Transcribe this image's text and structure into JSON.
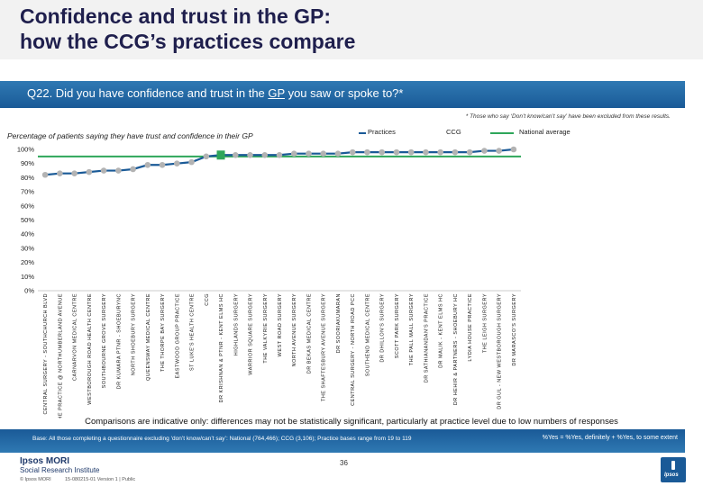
{
  "header": {
    "title": "Confidence and trust in the GP:\nhow the CCG’s practices compare"
  },
  "question": {
    "prefix": "Q22. Did you have confidence and trust in the ",
    "underlined": "GP",
    "suffix": " you saw or spoke to?*"
  },
  "footnote": "* Those who say ‘Don’t know/can’t say’ have been excluded from these results.",
  "legend": {
    "practices": "Practices",
    "ccg": "CCG",
    "national": "National average"
  },
  "colors": {
    "practice_line": "#1a5a97",
    "dot": "#b3b3b3",
    "ccg": "#2ea65a",
    "national": "#2ea65a"
  },
  "chart_data": {
    "type": "scatter",
    "subtitle": "Percentage of patients saying they have trust and confidence in their GP",
    "ylim": [
      0,
      100
    ],
    "yticks": [
      "0%",
      "10%",
      "20%",
      "30%",
      "40%",
      "50%",
      "60%",
      "70%",
      "80%",
      "90%",
      "100%"
    ],
    "national_average": 95,
    "ccg_value": 95,
    "ccg_index": 12,
    "categories": [
      "CENTRAL SURGERY - SOUTHCHURCH BLVD",
      "THE PRACTICE @ NORTHUMBERLAND AVENUE",
      "CARNARVON MEDICAL CENTRE",
      "WESTBOROUGH ROAD HEALTH CENTRE",
      "SOUTHBOURNE GROVE SURGERY",
      "DR KUMARA PTNR - SHOEBURYNC",
      "NORTH SHOEBURY SURGERY",
      "QUEENSWAY MEDICAL CENTRE",
      "THE THORPE BAY SURGERY",
      "EASTWOOD GROUP PRACTICE",
      "ST LUKE'S HEALTH CENTRE",
      "CCG",
      "DR KRISHNAN & PTNR - KENT ELMS HC",
      "HIGHLANDS SURGERY",
      "WARRIOR SQUARE SURGERY",
      "THE VALKYRIE SURGERY",
      "WEST ROAD SURGERY",
      "NORTH AVENUE SURGERY",
      "DR BEKAS MEDICAL CENTRE",
      "THE SHAFTESBURY AVENUE SURGERY",
      "DR SOORIAKUMARAN",
      "CENTRAL SURGERY - NORTH ROAD PCC",
      "SOUTHEND MEDICAL CENTRE",
      "DR DHILLON'S SURGERY",
      "SCOTT PARK SURGERY",
      "THE PALL MALL SURGERY",
      "DR SATHIANANDAN'S PRACTICE",
      "DR MALIK - KENT ELMS HC",
      "DR HEHIR & PARTNERS - SHOEBURY HC",
      "LYDIA HOUSE PRACTICE",
      "THE LEIGH SURGERY",
      "DR GUL - NEW WESTBOROUGH SURGERY",
      "DR MARASCO'S SURGERY"
    ],
    "values": [
      82,
      83,
      83,
      84,
      85,
      85,
      86,
      89,
      89,
      90,
      91,
      95,
      96,
      96,
      96,
      96,
      96,
      97,
      97,
      97,
      97,
      98,
      98,
      98,
      98,
      98,
      98,
      98,
      98,
      98,
      99,
      99,
      100
    ]
  },
  "comparisons": "Comparisons are indicative only: differences may not be statistically significant, particularly at practice level due to low numbers of responses",
  "base": "Base: All those completing a questionnaire excluding ‘don’t know/can’t say’: National (764,466); CCG (3,106); Practice bases range from 19 to 119",
  "yes_note": "%Yes = %Yes, definitely + %Yes, to some extent",
  "page_number": "36",
  "logo": {
    "brand": "Ipsos MORI",
    "sub": "Social Research Institute"
  },
  "copyright": "© Ipsos MORI",
  "version": "15-080215-01 Version 1 | Public",
  "corner_logo_text": "Ipsos"
}
